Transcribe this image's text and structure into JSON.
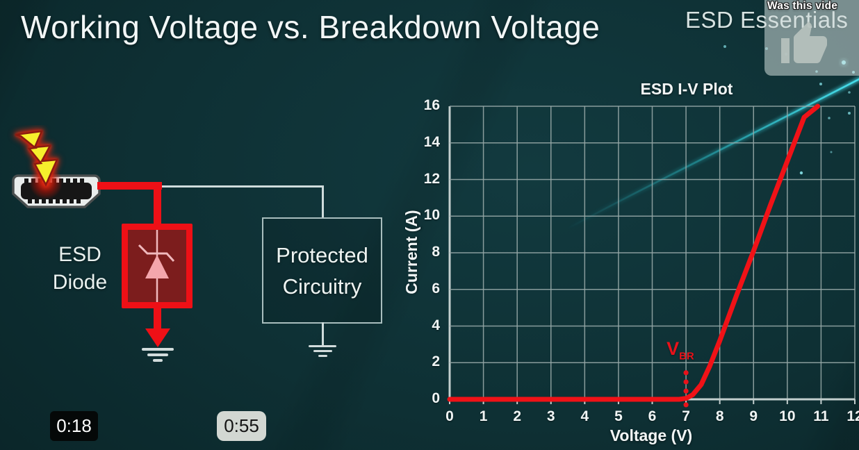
{
  "slide": {
    "title": "Working Voltage vs. Breakdown Voltage",
    "brand": "ESD Essentials",
    "circuit": {
      "esd_diode_label": [
        "ESD",
        "Diode"
      ],
      "protected_label": [
        "Protected",
        "Circuitry"
      ],
      "colors": {
        "surge_wire_red": "#ee1016",
        "signal_wire_gray": "#cfdcdc",
        "diode_fill": "#7c1d1d",
        "diode_symbol_pink": "#f4a6ac",
        "lightning_yellow": "#f6ef2c"
      }
    }
  },
  "video_overlay": {
    "feedback_prompt": "Was this vide",
    "thumbs_icon": "thumbs-up-icon",
    "timestamps": {
      "current": "0:18",
      "end": "0:55"
    }
  },
  "chart_data": {
    "type": "line",
    "title": "ESD I-V Plot",
    "xlabel": "Voltage (V)",
    "ylabel": "Current (A)",
    "xlim": [
      0,
      12
    ],
    "ylim": [
      0,
      16
    ],
    "x_ticks": [
      0,
      1,
      2,
      3,
      4,
      5,
      6,
      7,
      8,
      9,
      10,
      11,
      12
    ],
    "y_ticks": [
      0,
      2,
      4,
      6,
      8,
      10,
      12,
      14,
      16
    ],
    "grid": true,
    "legend": "none",
    "series": [
      {
        "name": "ESD diode I-V curve",
        "color": "#f01217",
        "points": [
          [
            0,
            0
          ],
          [
            1,
            0
          ],
          [
            2,
            0
          ],
          [
            3,
            0
          ],
          [
            4,
            0
          ],
          [
            5,
            0
          ],
          [
            6,
            0
          ],
          [
            6.8,
            0
          ],
          [
            7,
            0.05
          ],
          [
            7.2,
            0.25
          ],
          [
            7.45,
            0.8
          ],
          [
            7.7,
            1.8
          ],
          [
            8,
            3.2
          ],
          [
            8.5,
            5.7
          ],
          [
            9,
            8.1
          ],
          [
            9.5,
            10.6
          ],
          [
            10,
            13.0
          ],
          [
            10.5,
            15.4
          ],
          [
            10.9,
            16
          ]
        ]
      }
    ],
    "annotations": [
      {
        "text_main": "V",
        "text_sub": "BR",
        "x": 7,
        "label_y": 2.9,
        "dots_y": [
          1.45,
          0.95,
          0.45,
          -0.3
        ],
        "color": "#e8121a",
        "meaning": "breakdown voltage marker at 7 V"
      }
    ]
  }
}
